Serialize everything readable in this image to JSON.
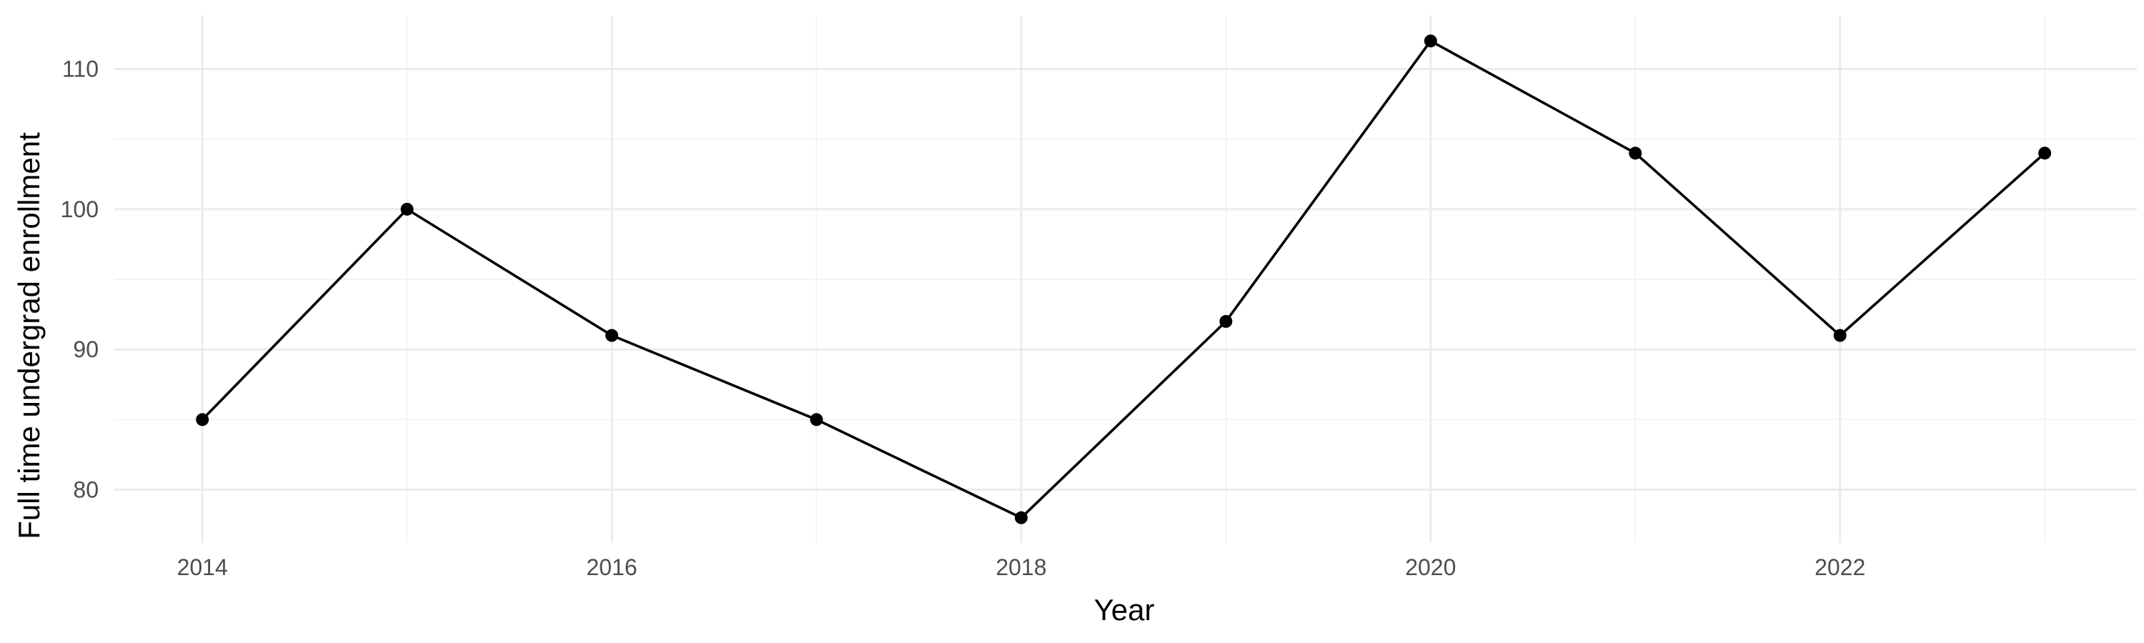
{
  "chart_data": {
    "type": "line",
    "title": "",
    "xlabel": "Year",
    "ylabel": "Full time undergrad enrollment",
    "x": [
      2014,
      2015,
      2016,
      2017,
      2018,
      2019,
      2020,
      2021,
      2022,
      2023
    ],
    "series": [
      {
        "values": [
          85,
          100,
          91,
          85,
          78,
          92,
          112,
          104,
          91,
          104
        ]
      }
    ],
    "xlim": [
      2013.57,
      2023.45
    ],
    "ylim": [
      76.2,
      113.8
    ],
    "x_ticks": [
      2014,
      2016,
      2018,
      2020,
      2022
    ],
    "x_minor_ticks": [
      2015,
      2017,
      2019,
      2021,
      2023
    ],
    "y_ticks": [
      80,
      90,
      100,
      110
    ],
    "y_minor_ticks": [
      85,
      95,
      105
    ],
    "grid": true,
    "legend": "none",
    "colors": {
      "line": "#000000",
      "grid": "#ebebeb",
      "background": "#ffffff"
    }
  }
}
